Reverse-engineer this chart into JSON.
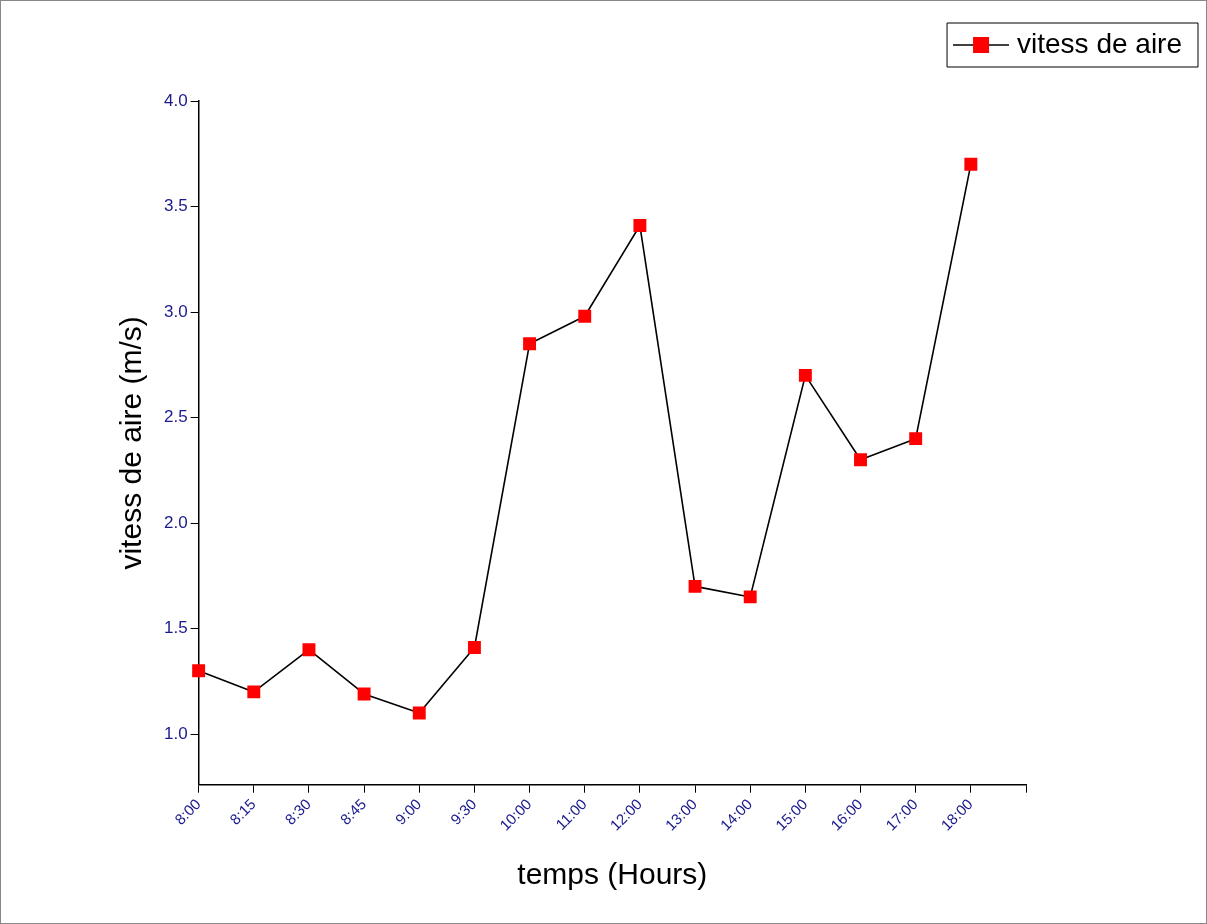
{
  "chart_data": {
    "type": "line",
    "xlabel": "temps (Hours)",
    "ylabel": "vitess de aire (m/s)",
    "categories": [
      "8:00",
      "8:15",
      "8:30",
      "8:45",
      "9:00",
      "9:30",
      "10:00",
      "11:00",
      "12:00",
      "13:00",
      "14:00",
      "15:00",
      "16:00",
      "17:00",
      "18:00",
      null
    ],
    "series": [
      {
        "name": "vitess de aire",
        "color": "#ff0000",
        "values": [
          1.3,
          1.2,
          1.4,
          1.19,
          1.1,
          1.41,
          2.85,
          2.98,
          3.41,
          1.7,
          1.65,
          2.7,
          2.3,
          2.4,
          3.7,
          null
        ]
      }
    ],
    "ylim": [
      0.76,
      4.0
    ],
    "yticks": [
      {
        "value": 1.0,
        "label": "1.0"
      },
      {
        "value": 1.5,
        "label": "1.5"
      },
      {
        "value": 2.0,
        "label": "2.0"
      },
      {
        "value": 2.5,
        "label": "2.5"
      },
      {
        "value": 3.0,
        "label": "3.0"
      },
      {
        "value": 3.5,
        "label": "3.5"
      },
      {
        "value": 4.0,
        "label": "4.0"
      }
    ],
    "grid": false,
    "legend": "top right",
    "marker": "square",
    "line_style": "solid"
  }
}
